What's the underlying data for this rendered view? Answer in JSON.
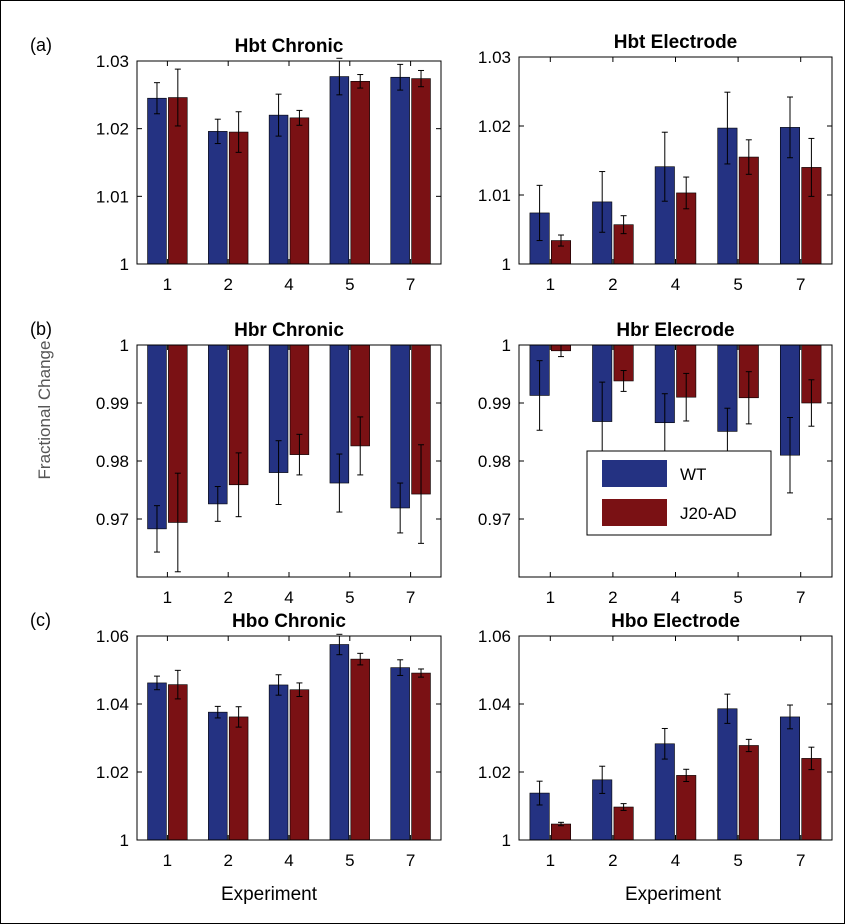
{
  "figure": {
    "ylabel": "Fractional Change",
    "xlabel": "Experiment"
  },
  "legend": {
    "entries": [
      {
        "name": "WT",
        "color": "#243282"
      },
      {
        "name": "J20-AD",
        "color": "#7a1114"
      }
    ]
  },
  "chart_data": [
    {
      "type": "bar",
      "panel_label": "(a)",
      "title": "Hbt Chronic",
      "categories": [
        "1",
        "2",
        "4",
        "5",
        "7"
      ],
      "ylim": [
        1,
        1.03
      ],
      "yticks": [
        "1",
        "1.01",
        "1.02",
        "1.03"
      ],
      "xlabel": "",
      "series": [
        {
          "name": "WT",
          "values": [
            1.0245,
            1.0196,
            1.022,
            1.0277,
            1.0276
          ],
          "errors": [
            0.0023,
            0.0018,
            0.0031,
            0.0027,
            0.0019
          ]
        },
        {
          "name": "J20-AD",
          "values": [
            1.0246,
            1.0195,
            1.0216,
            1.027,
            1.0274
          ],
          "errors": [
            0.0042,
            0.003,
            0.0011,
            0.001,
            0.0012
          ]
        }
      ]
    },
    {
      "type": "bar",
      "panel_label": "",
      "title": "Hbt Electrode",
      "categories": [
        "1",
        "2",
        "4",
        "5",
        "7"
      ],
      "ylim": [
        1,
        1.03
      ],
      "yticks": [
        "1",
        "1.01",
        "1.02",
        "1.03"
      ],
      "xlabel": "",
      "series": [
        {
          "name": "WT",
          "values": [
            1.0074,
            1.009,
            1.0141,
            1.0197,
            1.0198
          ],
          "errors": [
            0.004,
            0.0044,
            0.005,
            0.0052,
            0.0044
          ]
        },
        {
          "name": "J20-AD",
          "values": [
            1.0034,
            1.0057,
            1.0103,
            1.0155,
            1.014
          ],
          "errors": [
            0.0008,
            0.0013,
            0.0023,
            0.0025,
            0.0042
          ]
        }
      ]
    },
    {
      "type": "bar",
      "panel_label": "(b)",
      "title": "Hbr Chronic",
      "categories": [
        "1",
        "2",
        "4",
        "5",
        "7"
      ],
      "ylim": [
        0.96,
        1
      ],
      "baseline": 1,
      "yticks": [
        "0.97",
        "0.98",
        "0.99",
        "1"
      ],
      "xlabel": "",
      "series": [
        {
          "name": "WT",
          "values": [
            0.9683,
            0.9726,
            0.978,
            0.9762,
            0.9719
          ],
          "errors": [
            0.004,
            0.003,
            0.0055,
            0.005,
            0.0043
          ]
        },
        {
          "name": "J20-AD",
          "values": [
            0.9694,
            0.9759,
            0.9811,
            0.9826,
            0.9743
          ],
          "errors": [
            0.0085,
            0.0055,
            0.0035,
            0.005,
            0.0085
          ]
        }
      ]
    },
    {
      "type": "bar",
      "panel_label": "",
      "title": "Hbr Elecrode",
      "categories": [
        "1",
        "2",
        "4",
        "5",
        "7"
      ],
      "ylim": [
        0.96,
        1
      ],
      "baseline": 1,
      "yticks": [
        "0.97",
        "0.98",
        "0.99",
        "1"
      ],
      "xlabel": "",
      "series": [
        {
          "name": "WT",
          "values": [
            0.9913,
            0.9868,
            0.9866,
            0.9851,
            0.981
          ],
          "errors": [
            0.006,
            0.0068,
            0.005,
            0.004,
            0.0065
          ]
        },
        {
          "name": "J20-AD",
          "values": [
            0.999,
            0.9938,
            0.991,
            0.9909,
            0.99
          ],
          "errors": [
            0.001,
            0.0018,
            0.0041,
            0.0045,
            0.004
          ]
        }
      ]
    },
    {
      "type": "bar",
      "panel_label": "(c)",
      "title": "Hbo Chronic",
      "categories": [
        "1",
        "2",
        "4",
        "5",
        "7"
      ],
      "ylim": [
        1,
        1.06
      ],
      "yticks": [
        "1",
        "1.02",
        "1.04",
        "1.06"
      ],
      "xlabel": "Experiment",
      "series": [
        {
          "name": "WT",
          "values": [
            1.0462,
            1.0376,
            1.0456,
            1.0575,
            1.0507
          ],
          "errors": [
            0.002,
            0.0017,
            0.003,
            0.003,
            0.0023
          ]
        },
        {
          "name": "J20-AD",
          "values": [
            1.0457,
            1.0362,
            1.0442,
            1.0532,
            1.0491
          ],
          "errors": [
            0.0042,
            0.003,
            0.002,
            0.0017,
            0.0012
          ]
        }
      ]
    },
    {
      "type": "bar",
      "panel_label": "",
      "title": "Hbo Electrode",
      "categories": [
        "1",
        "2",
        "4",
        "5",
        "7"
      ],
      "ylim": [
        1,
        1.06
      ],
      "yticks": [
        "1",
        "1.02",
        "1.04",
        "1.06"
      ],
      "xlabel": "Experiment",
      "series": [
        {
          "name": "WT",
          "values": [
            1.0138,
            1.0177,
            1.0283,
            1.0386,
            1.0362
          ],
          "errors": [
            0.0035,
            0.004,
            0.0045,
            0.0043,
            0.0035
          ]
        },
        {
          "name": "J20-AD",
          "values": [
            1.0047,
            1.0097,
            1.019,
            1.0278,
            1.024
          ],
          "errors": [
            0.0005,
            0.001,
            0.0018,
            0.0018,
            0.0033
          ]
        }
      ]
    }
  ]
}
